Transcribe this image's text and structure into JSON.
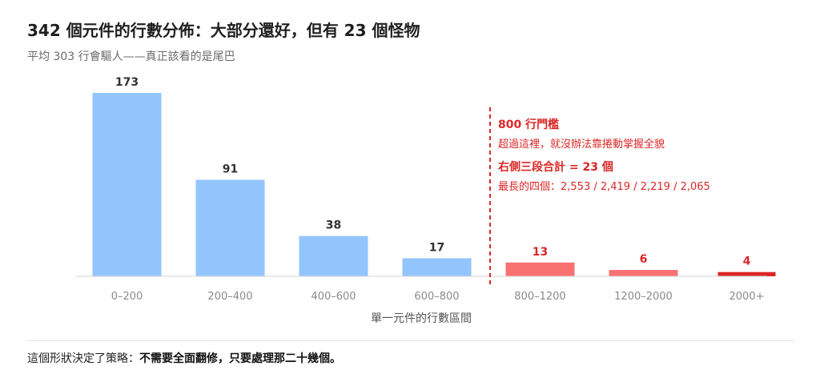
{
  "header": {
    "title": "342 個元件的行數分佈：大部分還好，但有 23 個怪物",
    "subtitle": "平均 303 行會驅人——真正該看的是尾巴"
  },
  "chart_data": {
    "type": "bar",
    "categories": [
      "0–200",
      "200–400",
      "400–600",
      "600–800",
      "800–1200",
      "1200–2000",
      "2000+"
    ],
    "values": [
      173,
      91,
      38,
      17,
      13,
      6,
      4
    ],
    "xlabel": "單一元件的行數區間",
    "ylabel": "",
    "ylim": [
      0,
      173
    ],
    "grid": false,
    "legend": "none",
    "colors": {
      "normal": "#93c5fd",
      "over_threshold": "#f87171",
      "extreme": "#dc2626",
      "annotation": "#dc2626",
      "label": "#333333",
      "tick": "#8a8a8a"
    },
    "threshold": {
      "label": "800 行門檻",
      "note": "超過這裡，就沒辦法靠捲動掌握全貌",
      "sum_label": "右側三段合計 = 23 個",
      "longest_label": "最長的四個：2,553 / 2,419 / 2,219 / 2,065"
    }
  },
  "footer": {
    "lead": "這個形狀決定了策略：",
    "emphasis": "不需要全面翻修，只要處理那二十幾個。"
  }
}
